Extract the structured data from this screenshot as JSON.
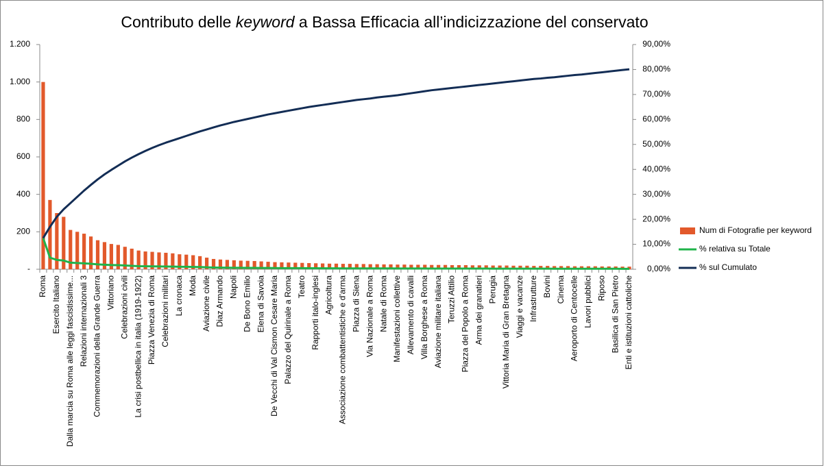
{
  "chart_data": {
    "type": "bar",
    "title": [
      "Contributo delle ",
      "keyword",
      " a Bassa Efficacia all’indicizzazione del conservato"
    ],
    "categories": [
      "Roma",
      null,
      "Esercito Italiano",
      null,
      "Dalla marcia su Roma alle leggi fascistissime...",
      null,
      "Relazioni internazionali 3",
      null,
      "Commemorazioni della Grande Guerra",
      null,
      "Vittoriano",
      null,
      "Celebrazioni civili",
      null,
      "La crisi postbellica in italia (1919-1922)",
      null,
      "Piazza Venezia di Roma",
      null,
      "Celebrazioni militari",
      null,
      "La cronaca",
      null,
      "Moda",
      null,
      "Aviazione civile",
      null,
      "Diaz Armando",
      null,
      "Napoli",
      null,
      "De Bono Emilio",
      null,
      "Elena di Savoia",
      null,
      "De Vecchi di Val Cismon Cesare Maria",
      null,
      "Palazzo del Quirinale a Roma",
      null,
      "Teatro",
      null,
      "Rapporti italo-inglesi",
      null,
      "Agricoltura",
      null,
      "Associazione combattentistiche e d'arma",
      null,
      "Piazza di Siena",
      null,
      "Via Nazionale a Roma",
      null,
      "Natale di Roma",
      null,
      "Manifestazioni collettive",
      null,
      "Allevamento di cavalli",
      null,
      "Villa Borghese a Roma",
      null,
      "Aviazione militare italiana",
      null,
      "Teruzzi Attilio",
      null,
      "Piazza del Popolo a Roma",
      null,
      "Arma dei granatieri",
      null,
      "Perugia",
      null,
      "Vittoria Maria di Gran Bretagna",
      null,
      "Viaggi e vacanze",
      null,
      "Infrastrutture",
      null,
      "Bovini",
      null,
      "Cinema",
      null,
      "Aeroporto di Centocelle",
      null,
      "Lavori pubblici",
      null,
      "Riposo",
      null,
      "Basilica di San Pietro",
      null,
      "Enti e istituzioni cattoliche"
    ],
    "series": [
      {
        "name": "Num di Fotografie per keyword",
        "type": "bar",
        "color": "#e2592b",
        "values": [
          1000,
          370,
          300,
          280,
          210,
          200,
          190,
          175,
          155,
          145,
          135,
          130,
          120,
          110,
          100,
          95,
          93,
          90,
          88,
          85,
          80,
          78,
          75,
          70,
          62,
          55,
          52,
          50,
          48,
          46,
          45,
          44,
          42,
          40,
          38,
          37,
          36,
          35,
          34,
          33,
          32,
          31,
          30,
          30,
          29,
          29,
          28,
          28,
          27,
          27,
          26,
          26,
          25,
          25,
          24,
          24,
          24,
          23,
          23,
          23,
          22,
          22,
          22,
          21,
          21,
          21,
          20,
          20,
          20,
          19,
          19,
          19,
          18,
          18,
          18,
          17,
          17,
          17,
          16,
          16,
          16,
          16,
          15,
          15,
          15,
          14,
          14
        ]
      },
      {
        "name": "% relativa su Totale",
        "type": "line",
        "axis": "y2",
        "color": "#1fb34a",
        "values": [
          12.5,
          4.63,
          3.75,
          3.5,
          2.63,
          2.5,
          2.38,
          2.19,
          1.94,
          1.81,
          1.69,
          1.63,
          1.5,
          1.38,
          1.25,
          1.19,
          1.16,
          1.13,
          1.1,
          1.06,
          1.0,
          0.98,
          0.94,
          0.88,
          0.78,
          0.69,
          0.65,
          0.63,
          0.6,
          0.58,
          0.56,
          0.55,
          0.53,
          0.5,
          0.48,
          0.46,
          0.45,
          0.44,
          0.43,
          0.41,
          0.4,
          0.39,
          0.38,
          0.38,
          0.36,
          0.36,
          0.35,
          0.35,
          0.34,
          0.34,
          0.33,
          0.33,
          0.31,
          0.31,
          0.3,
          0.3,
          0.3,
          0.29,
          0.29,
          0.29,
          0.28,
          0.28,
          0.28,
          0.26,
          0.26,
          0.26,
          0.25,
          0.25,
          0.25,
          0.24,
          0.24,
          0.24,
          0.23,
          0.23,
          0.23,
          0.21,
          0.21,
          0.21,
          0.2,
          0.2,
          0.2,
          0.2,
          0.19,
          0.19,
          0.19,
          0.18,
          0.18
        ]
      },
      {
        "name": "% sul Cumulato",
        "type": "line",
        "axis": "y2",
        "color": "#132d55",
        "values": [
          12.5,
          17,
          21,
          24,
          26.5,
          29,
          31.5,
          33.8,
          36,
          38,
          39.8,
          41.5,
          43.2,
          44.7,
          46.1,
          47.4,
          48.6,
          49.7,
          50.7,
          51.6,
          52.5,
          53.4,
          54.3,
          55.2,
          56,
          56.8,
          57.6,
          58.3,
          59,
          59.6,
          60.2,
          60.8,
          61.4,
          62,
          62.5,
          63,
          63.5,
          64,
          64.5,
          65,
          65.4,
          65.8,
          66.2,
          66.6,
          67,
          67.4,
          67.8,
          68.1,
          68.4,
          68.8,
          69.1,
          69.4,
          69.7,
          70.1,
          70.5,
          70.9,
          71.3,
          71.7,
          72,
          72.3,
          72.6,
          72.9,
          73.2,
          73.5,
          73.8,
          74.1,
          74.4,
          74.7,
          75,
          75.3,
          75.6,
          75.9,
          76.2,
          76.4,
          76.7,
          76.9,
          77.2,
          77.5,
          77.8,
          78,
          78.3,
          78.6,
          78.9,
          79.2,
          79.5,
          79.8,
          80.1
        ]
      }
    ],
    "ylim": [
      0,
      1200
    ],
    "yticks": [
      {
        "value": 0,
        "label": "-"
      },
      200,
      400,
      600,
      800,
      {
        "value": 1000,
        "label": "1.000"
      },
      {
        "value": 1200,
        "label": "1.200"
      }
    ],
    "y2lim": [
      0,
      90
    ],
    "y2ticks": [
      {
        "value": 0,
        "label": "0,00%"
      },
      {
        "value": 10,
        "label": "10,00%"
      },
      {
        "value": 20,
        "label": "20,00%"
      },
      {
        "value": 30,
        "label": "30,00%"
      },
      {
        "value": 40,
        "label": "40,00%"
      },
      {
        "value": 50,
        "label": "50,00%"
      },
      {
        "value": 60,
        "label": "60,00%"
      },
      {
        "value": 70,
        "label": "70,00%"
      },
      {
        "value": 80,
        "label": "80,00%"
      },
      {
        "value": 90,
        "label": "90,00%"
      }
    ],
    "legend": "right",
    "grid": false
  }
}
